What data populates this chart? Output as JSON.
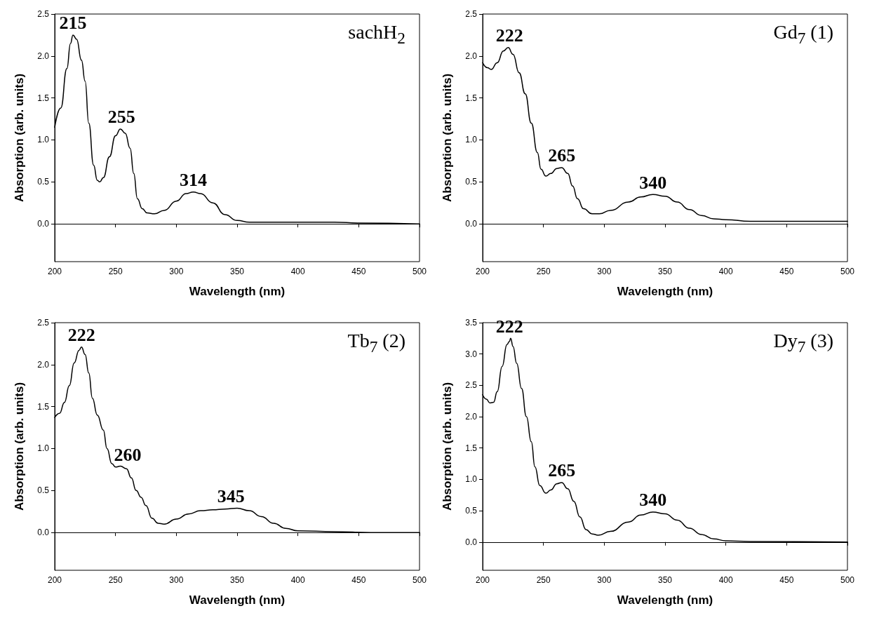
{
  "chart_data": [
    {
      "type": "line",
      "title": "sachH$_{2}$",
      "xlabel": "Wavelength (nm)",
      "ylabel": "Absorption (arb. units)",
      "xlim": [
        200,
        500
      ],
      "xticks": [
        200,
        250,
        300,
        350,
        400,
        450,
        500
      ],
      "ylim": [
        -0.45,
        2.5
      ],
      "yticks": [
        {
          "value": 0,
          "label": "0.0"
        },
        0.5,
        {
          "value": 1,
          "label": "1.0"
        },
        1.5,
        {
          "value": 2,
          "label": "2.0"
        },
        2.5
      ],
      "series": [
        {
          "color": "#000000",
          "x": [
            200,
            205,
            210,
            213,
            215,
            218,
            222,
            225,
            228,
            232,
            235,
            237,
            240,
            245,
            250,
            254,
            258,
            262,
            265,
            268,
            272,
            276,
            282,
            290,
            300,
            308,
            314,
            320,
            330,
            340,
            350,
            360,
            400,
            430,
            450,
            500
          ],
          "values": [
            1.15,
            1.38,
            1.85,
            2.15,
            2.25,
            2.2,
            1.95,
            1.7,
            1.2,
            0.7,
            0.52,
            0.5,
            0.55,
            0.8,
            1.05,
            1.13,
            1.08,
            0.9,
            0.6,
            0.3,
            0.18,
            0.13,
            0.12,
            0.16,
            0.27,
            0.36,
            0.38,
            0.36,
            0.25,
            0.11,
            0.04,
            0.02,
            0.02,
            0.02,
            0.01,
            0
          ]
        }
      ],
      "annotations": [
        {
          "text": "215",
          "x": 215,
          "y": 2.25
        },
        {
          "text": "255",
          "x": 255,
          "y": 1.13
        },
        {
          "text": "314",
          "x": 314,
          "y": 0.38
        }
      ]
    },
    {
      "type": "line",
      "title": "Gd$_{7}$ (1)",
      "xlabel": "Wavelength (nm)",
      "ylabel": "Absorption (arb. units)",
      "xlim": [
        200,
        500
      ],
      "xticks": [
        200,
        250,
        300,
        350,
        400,
        450,
        500
      ],
      "ylim": [
        -0.45,
        2.5
      ],
      "yticks": [
        {
          "value": 0,
          "label": "0.0"
        },
        0.5,
        {
          "value": 1,
          "label": "1.0"
        },
        1.5,
        {
          "value": 2,
          "label": "2.0"
        },
        2.5
      ],
      "series": [
        {
          "color": "#000000",
          "x": [
            200,
            204,
            207,
            212,
            217,
            221,
            225,
            230,
            235,
            240,
            245,
            248,
            252,
            256,
            261,
            265,
            270,
            274,
            278,
            283,
            290,
            296,
            305,
            320,
            330,
            340,
            350,
            360,
            370,
            380,
            390,
            400,
            420,
            450,
            500
          ],
          "values": [
            1.92,
            1.86,
            1.84,
            1.92,
            2.06,
            2.1,
            2.02,
            1.8,
            1.55,
            1.2,
            0.85,
            0.65,
            0.57,
            0.6,
            0.66,
            0.67,
            0.6,
            0.45,
            0.3,
            0.18,
            0.12,
            0.12,
            0.16,
            0.26,
            0.32,
            0.35,
            0.33,
            0.26,
            0.17,
            0.1,
            0.06,
            0.05,
            0.03,
            0.03,
            0.03
          ]
        }
      ],
      "annotations": [
        {
          "text": "222",
          "x": 222,
          "y": 2.1
        },
        {
          "text": "265",
          "x": 265,
          "y": 0.67
        },
        {
          "text": "340",
          "x": 340,
          "y": 0.35
        }
      ]
    },
    {
      "type": "line",
      "title": "Tb$_{7}$ (2)",
      "xlabel": "Wavelength (nm)",
      "ylabel": "Absorption (arb. units)",
      "xlim": [
        200,
        500
      ],
      "xticks": [
        200,
        250,
        300,
        350,
        400,
        450,
        500
      ],
      "ylim": [
        -0.45,
        2.5
      ],
      "yticks": [
        {
          "value": 0,
          "label": "0.0"
        },
        0.5,
        {
          "value": 1,
          "label": "1.0"
        },
        1.5,
        {
          "value": 2,
          "label": "2.0"
        },
        2.5
      ],
      "series": [
        {
          "color": "#000000",
          "x": [
            200,
            204,
            208,
            212,
            216,
            220,
            222,
            225,
            228,
            231,
            235,
            240,
            243,
            247,
            250,
            254,
            259,
            263,
            267,
            271,
            275,
            280,
            285,
            290,
            300,
            310,
            320,
            330,
            340,
            350,
            360,
            370,
            380,
            390,
            400,
            430,
            460,
            500
          ],
          "values": [
            1.37,
            1.42,
            1.55,
            1.75,
            2.02,
            2.17,
            2.21,
            2.12,
            1.9,
            1.6,
            1.4,
            1.22,
            1.0,
            0.82,
            0.78,
            0.79,
            0.76,
            0.65,
            0.5,
            0.42,
            0.32,
            0.17,
            0.11,
            0.1,
            0.16,
            0.22,
            0.26,
            0.27,
            0.28,
            0.29,
            0.26,
            0.19,
            0.11,
            0.05,
            0.02,
            0.01,
            0,
            0
          ]
        }
      ],
      "annotations": [
        {
          "text": "222",
          "x": 222,
          "y": 2.21
        },
        {
          "text": "260",
          "x": 260,
          "y": 0.78
        },
        {
          "text": "345",
          "x": 345,
          "y": 0.29
        }
      ]
    },
    {
      "type": "line",
      "title": "Dy$_{7}$ (3)",
      "xlabel": "Wavelength (nm)",
      "ylabel": "Absorption (arb. units)",
      "xlim": [
        200,
        500
      ],
      "xticks": [
        200,
        250,
        300,
        350,
        400,
        450,
        500
      ],
      "ylim": [
        -0.45,
        3.5
      ],
      "yticks": [
        {
          "value": 0,
          "label": "0.0"
        },
        0.5,
        {
          "value": 1,
          "label": "1.0"
        },
        1.5,
        {
          "value": 2,
          "label": "2.0"
        },
        2.5,
        {
          "value": 3,
          "label": "3.0"
        },
        3.5
      ],
      "series": [
        {
          "color": "#000000",
          "x": [
            200,
            203,
            206,
            209,
            212,
            216,
            220,
            222,
            223,
            225,
            228,
            232,
            236,
            240,
            243,
            247,
            252,
            256,
            261,
            265,
            270,
            275,
            280,
            285,
            290,
            295,
            305,
            320,
            330,
            340,
            350,
            360,
            370,
            380,
            390,
            400,
            420,
            500
          ],
          "values": [
            2.35,
            2.28,
            2.22,
            2.23,
            2.4,
            2.8,
            3.15,
            3.2,
            3.25,
            3.12,
            2.85,
            2.45,
            2.0,
            1.6,
            1.2,
            0.9,
            0.78,
            0.83,
            0.93,
            0.95,
            0.85,
            0.65,
            0.4,
            0.2,
            0.13,
            0.11,
            0.17,
            0.32,
            0.43,
            0.48,
            0.45,
            0.35,
            0.22,
            0.12,
            0.05,
            0.02,
            0.01,
            0
          ]
        }
      ],
      "annotations": [
        {
          "text": "222",
          "x": 222,
          "y": 3.25
        },
        {
          "text": "265",
          "x": 265,
          "y": 0.95
        },
        {
          "text": "340",
          "x": 340,
          "y": 0.48
        }
      ]
    }
  ]
}
